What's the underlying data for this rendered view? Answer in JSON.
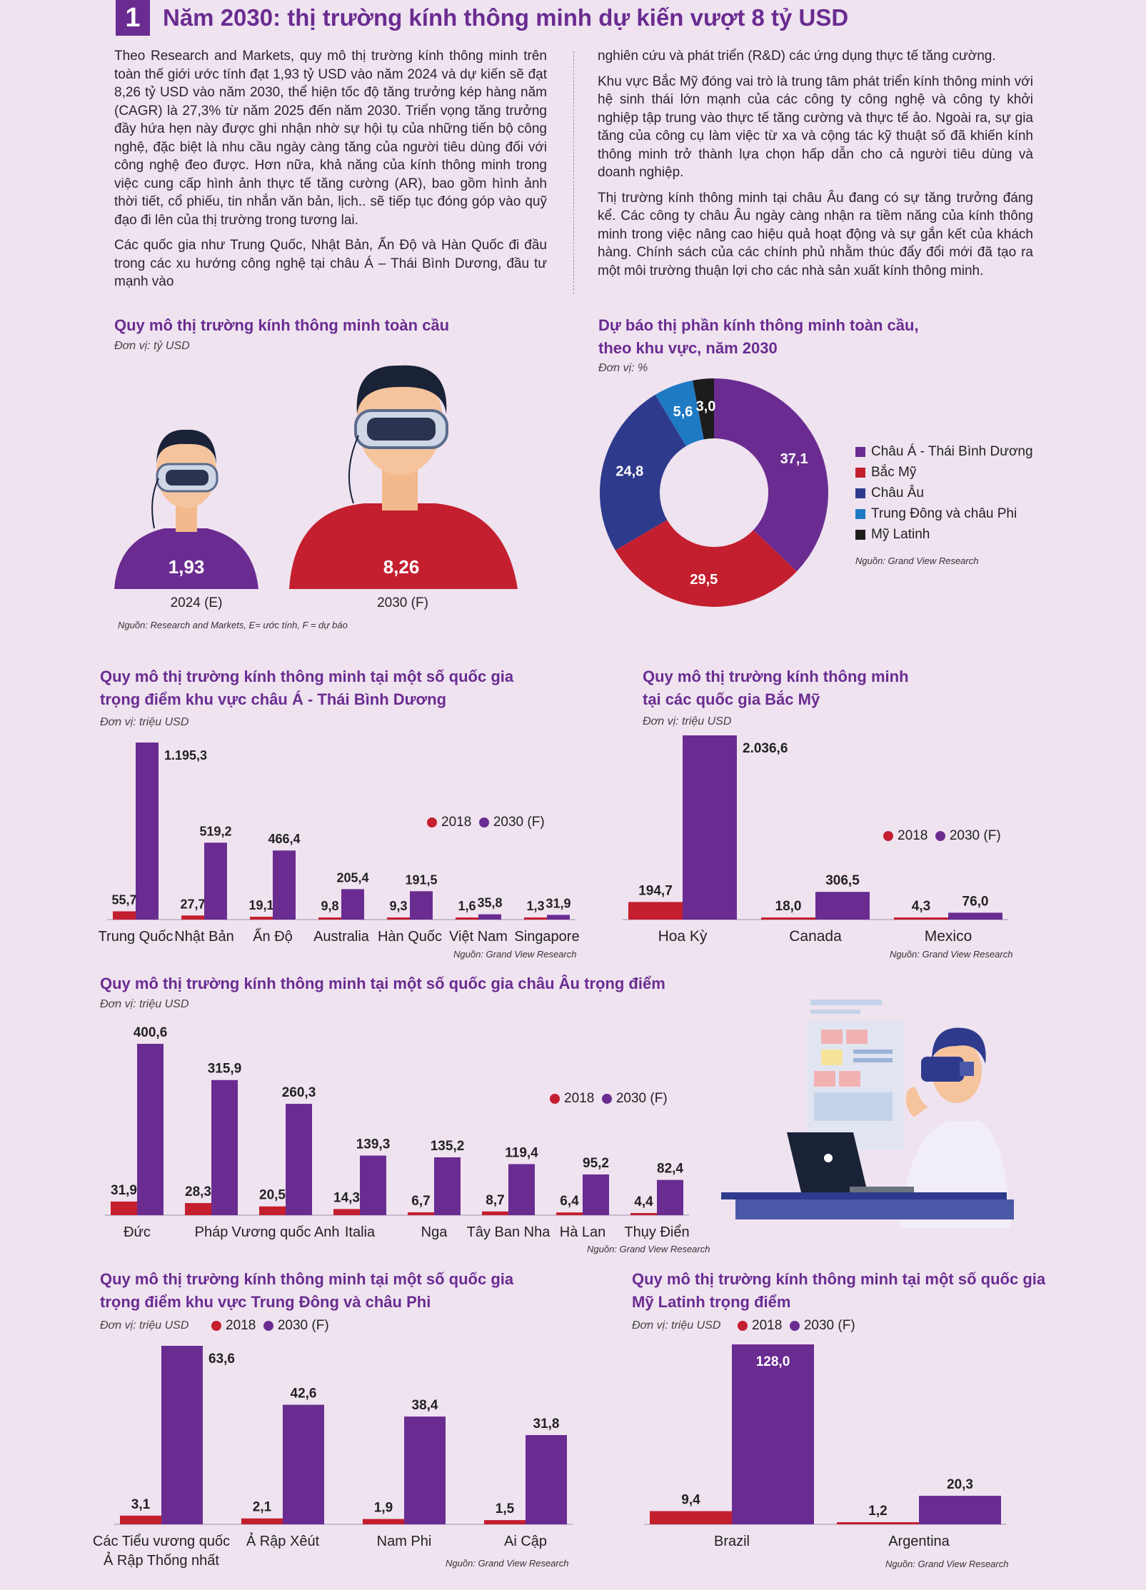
{
  "header": {
    "number": "1",
    "title": "Năm 2030: thị trường kính thông minh dự kiến vượt 8 tỷ USD"
  },
  "article": {
    "left": [
      "Theo Research and Markets, quy mô thị trường kính thông minh trên toàn thế giới ước tính đạt 1,93 tỷ USD vào năm 2024 và dự kiến sẽ đạt 8,26 tỷ USD vào năm 2030, thể hiện tốc độ tăng trưởng kép hàng năm (CAGR) là 27,3% từ năm 2025 đến năm 2030. Triển vọng tăng trưởng đầy hứa hẹn này được ghi nhận nhờ sự hội tụ của những tiến bộ công nghệ, đặc biệt là nhu cầu ngày càng tăng của người tiêu dùng đối với công nghệ đeo được. Hơn nữa, khả năng của kính thông minh trong việc cung cấp hình ảnh thực tế tăng cường (AR), bao gồm hình ảnh thời tiết, cổ phiếu, tin nhắn văn bản, lịch.. sẽ tiếp tục đóng góp vào quỹ đạo đi lên của thị trường trong tương lai.",
      "Các quốc gia như Trung Quốc, Nhật Bản, Ấn Độ và Hàn Quốc đi đầu trong các xu hướng công nghệ tại châu Á – Thái Bình Dương, đầu tư mạnh vào"
    ],
    "right": [
      "nghiên cứu và phát triển (R&D) các ứng dụng thực tế tăng cường.",
      "Khu vực Bắc Mỹ đóng vai trò là trung tâm phát triển kính thông minh với hệ sinh thái lớn mạnh của các công ty công nghệ và công ty khởi nghiệp tập trung vào thực tế tăng cường và thực tế ảo. Ngoài ra, sự gia tăng của công cụ làm việc từ xa và cộng tác kỹ thuật số đã khiến kính thông minh trở thành lựa chọn hấp dẫn cho cả người tiêu dùng và doanh nghiệp.",
      "Thị trường kính thông minh tại châu Âu đang có sự tăng trưởng đáng kể. Các công ty châu Âu ngày càng nhận ra tiềm năng của kính thông minh trong việc nâng cao hiệu quả hoạt động và sự gắn kết của khách hàng. Chính sách của các chính phủ nhằm thúc đẩy đổi mới đã tạo ra một môi trường thuận lợi cho các nhà sản xuất kính thông minh."
    ]
  },
  "colors": {
    "red": "#c41f2f",
    "purple": "#6a2c91",
    "navy": "#2e3a8c",
    "blue": "#1f7ac4",
    "black": "#1c1c1c"
  },
  "legend": {
    "y2018": "2018",
    "y2030": "2030 (F)"
  },
  "chart_data": [
    {
      "id": "global",
      "type": "bar",
      "title": "Quy mô thị trường kính thông minh toàn cầu",
      "unit": "Đơn vị: tỷ USD",
      "categories": [
        "2024 (E)",
        "2030 (F)"
      ],
      "values": [
        1.93,
        8.26
      ],
      "labels": [
        "1,93",
        "8,26"
      ],
      "source": "Nguồn: Research and Markets, E= ước tính, F = dự báo"
    },
    {
      "id": "share",
      "type": "pie",
      "title_lines": [
        "Dự báo thị phần kính thông minh toàn cầu,",
        "theo khu vực, năm 2030"
      ],
      "unit": "Đơn vị: %",
      "slices": [
        {
          "name": "Châu Á - Thái Bình Dương",
          "value": 37.1,
          "label": "37,1",
          "color": "#6a2c91"
        },
        {
          "name": "Bắc Mỹ",
          "value": 29.5,
          "label": "29,5",
          "color": "#c41f2f"
        },
        {
          "name": "Châu Âu",
          "value": 24.8,
          "label": "24,8",
          "color": "#2e3a8c"
        },
        {
          "name": "Trung Đông và châu Phi",
          "value": 5.6,
          "label": "5,6",
          "color": "#1f7ac4"
        },
        {
          "name": "Mỹ Latinh",
          "value": 3.0,
          "label": "3,0",
          "color": "#1c1c1c"
        }
      ],
      "source": "Nguồn: Grand View Research"
    },
    {
      "id": "apac",
      "type": "bar",
      "title_lines": [
        "Quy mô thị trường kính thông minh tại một số quốc gia",
        "trọng điểm khu vực châu Á - Thái Bình Dương"
      ],
      "unit": "Đơn vị: triệu USD",
      "categories": [
        "Trung Quốc",
        "Nhật Bản",
        "Ấn Độ",
        "Australia",
        "Hàn Quốc",
        "Việt Nam",
        "Singapore"
      ],
      "series": [
        {
          "name": "2018",
          "values": [
            55.7,
            27.7,
            19.1,
            9.8,
            9.3,
            1.6,
            1.3
          ],
          "labels": [
            "55,7",
            "27,7",
            "19,1",
            "9,8",
            "9,3",
            "1,6",
            "1,3"
          ]
        },
        {
          "name": "2030 (F)",
          "values": [
            1195.3,
            519.2,
            466.4,
            205.4,
            191.5,
            35.8,
            31.9
          ],
          "labels": [
            "1.195,3",
            "519,2",
            "466,4",
            "205,4",
            "191,5",
            "35,8",
            "31,9"
          ]
        }
      ],
      "source": "Nguồn: Grand View Research"
    },
    {
      "id": "na",
      "type": "bar",
      "title_lines": [
        "Quy mô thị trường kính thông minh",
        "tại các quốc gia Bắc Mỹ"
      ],
      "unit": "Đơn vị: triệu USD",
      "categories": [
        "Hoa Kỳ",
        "Canada",
        "Mexico"
      ],
      "series": [
        {
          "name": "2018",
          "values": [
            194.7,
            18.0,
            4.3
          ],
          "labels": [
            "194,7",
            "18,0",
            "4,3"
          ]
        },
        {
          "name": "2030 (F)",
          "values": [
            2036.6,
            306.5,
            76.0
          ],
          "labels": [
            "2.036,6",
            "306,5",
            "76,0"
          ]
        }
      ],
      "source": "Nguồn: Grand View Research"
    },
    {
      "id": "eu",
      "type": "bar",
      "title": "Quy mô thị trường kính thông minh tại một số quốc gia châu Âu trọng điểm",
      "unit": "Đơn vị: triệu USD",
      "categories": [
        "Đức",
        "Pháp",
        "Vương quốc Anh",
        "Italia",
        "Nga",
        "Tây Ban Nha",
        "Hà Lan",
        "Thụy Điển"
      ],
      "series": [
        {
          "name": "2018",
          "values": [
            31.9,
            28.3,
            20.5,
            14.3,
            6.7,
            8.7,
            6.4,
            4.4
          ],
          "labels": [
            "31,9",
            "28,3",
            "20,5",
            "14,3",
            "6,7",
            "8,7",
            "6,4",
            "4,4"
          ]
        },
        {
          "name": "2030 (F)",
          "values": [
            400.6,
            315.9,
            260.3,
            139.3,
            135.2,
            119.4,
            95.2,
            82.4
          ],
          "labels": [
            "400,6",
            "315,9",
            "260,3",
            "139,3",
            "135,2",
            "119,4",
            "95,2",
            "82,4"
          ]
        }
      ],
      "source": "Nguồn: Grand View Research"
    },
    {
      "id": "mea",
      "type": "bar",
      "title_lines": [
        "Quy mô thị trường kính thông minh tại một số quốc gia",
        "trọng điểm khu vực Trung Đông và châu Phi"
      ],
      "unit": "Đơn vị: triệu USD",
      "categories": [
        "Các Tiểu vương quốc\nẢ Rập Thống nhất",
        "Ả Rập Xêút",
        "Nam Phi",
        "Ai Cập"
      ],
      "series": [
        {
          "name": "2018",
          "values": [
            3.1,
            2.1,
            1.9,
            1.5
          ],
          "labels": [
            "3,1",
            "2,1",
            "1,9",
            "1,5"
          ]
        },
        {
          "name": "2030 (F)",
          "values": [
            63.6,
            42.6,
            38.4,
            31.8
          ],
          "labels": [
            "63,6",
            "42,6",
            "38,4",
            "31,8"
          ]
        }
      ],
      "source": "Nguồn: Grand View Research"
    },
    {
      "id": "latam",
      "type": "bar",
      "title_lines": [
        "Quy mô thị trường kính thông minh tại một số quốc gia",
        "Mỹ Latinh trọng điểm"
      ],
      "unit": "Đơn vị: triệu USD",
      "categories": [
        "Brazil",
        "Argentina"
      ],
      "series": [
        {
          "name": "2018",
          "values": [
            9.4,
            1.2
          ],
          "labels": [
            "9,4",
            "1,2"
          ]
        },
        {
          "name": "2030 (F)",
          "values": [
            128.0,
            20.3
          ],
          "labels": [
            "128,0",
            "20,3"
          ]
        }
      ],
      "source": "Nguồn: Grand View Research"
    }
  ]
}
